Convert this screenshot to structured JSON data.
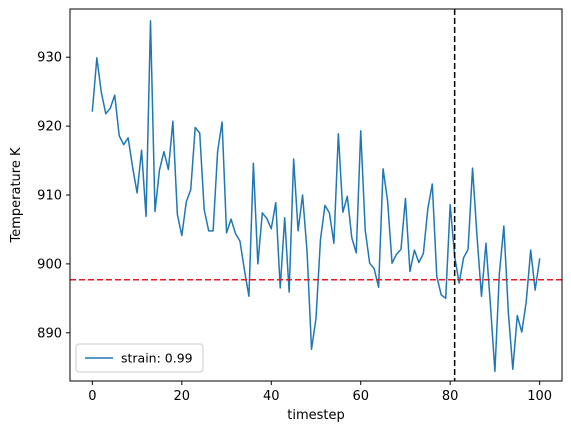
{
  "chart_data": {
    "type": "line",
    "title": "",
    "xlabel": "timestep",
    "ylabel": "Temperature K",
    "xlim": [
      -5,
      105
    ],
    "ylim": [
      883,
      937
    ],
    "xticks": [
      0,
      20,
      40,
      60,
      80,
      100
    ],
    "yticks": [
      890,
      900,
      910,
      920,
      930
    ],
    "grid": false,
    "legend_position": "lower-left",
    "series": [
      {
        "name": "strain: 0.99",
        "color": "#1f77b4",
        "x": [
          0,
          1,
          2,
          3,
          4,
          5,
          6,
          7,
          8,
          9,
          10,
          11,
          12,
          13,
          14,
          15,
          16,
          17,
          18,
          19,
          20,
          21,
          22,
          23,
          24,
          25,
          26,
          27,
          28,
          29,
          30,
          31,
          32,
          33,
          34,
          35,
          36,
          37,
          38,
          39,
          40,
          41,
          42,
          43,
          44,
          45,
          46,
          47,
          48,
          49,
          50,
          51,
          52,
          53,
          54,
          55,
          56,
          57,
          58,
          59,
          60,
          61,
          62,
          63,
          64,
          65,
          66,
          67,
          68,
          69,
          70,
          71,
          72,
          73,
          74,
          75,
          76,
          77,
          78,
          79,
          80,
          81,
          82,
          83,
          84,
          85,
          86,
          87,
          88,
          89,
          90,
          91,
          92,
          93,
          94,
          95,
          96,
          97,
          98,
          99,
          100
        ],
        "y": [
          922.2,
          929.9,
          924.9,
          921.8,
          922.6,
          924.5,
          918.6,
          917.3,
          918.3,
          914.0,
          910.3,
          916.5,
          906.9,
          935.3,
          907.6,
          913.6,
          916.3,
          913.7,
          920.7,
          907.2,
          904.1,
          909.0,
          910.8,
          919.8,
          919.0,
          907.9,
          904.8,
          904.8,
          916.3,
          920.6,
          904.5,
          906.5,
          904.4,
          903.3,
          899.1,
          895.3,
          914.6,
          900.0,
          907.4,
          906.6,
          905.1,
          908.9,
          896.5,
          906.7,
          895.9,
          915.2,
          904.8,
          910.0,
          901.8,
          887.6,
          892.1,
          903.5,
          908.5,
          907.4,
          903.0,
          918.9,
          907.5,
          909.8,
          903.8,
          901.6,
          919.3,
          904.9,
          900.1,
          899.3,
          896.6,
          913.8,
          909.2,
          900.1,
          901.4,
          902.1,
          909.5,
          898.9,
          902.0,
          900.2,
          901.5,
          908.0,
          911.6,
          898.2,
          895.5,
          895.0,
          908.6,
          901.1,
          897.2,
          900.9,
          902.1,
          913.9,
          904.0,
          895.3,
          903.0,
          894.0,
          884.4,
          898.6,
          905.5,
          893.0,
          884.7,
          892.5,
          890.1,
          894.5,
          902.0,
          896.2,
          900.7
        ]
      }
    ],
    "reference_lines": [
      {
        "orientation": "horizontal",
        "value": 897.7,
        "color": "#e41a1c",
        "style": "dashed"
      },
      {
        "orientation": "vertical",
        "value": 81,
        "color": "#000000",
        "style": "dashed"
      }
    ]
  }
}
